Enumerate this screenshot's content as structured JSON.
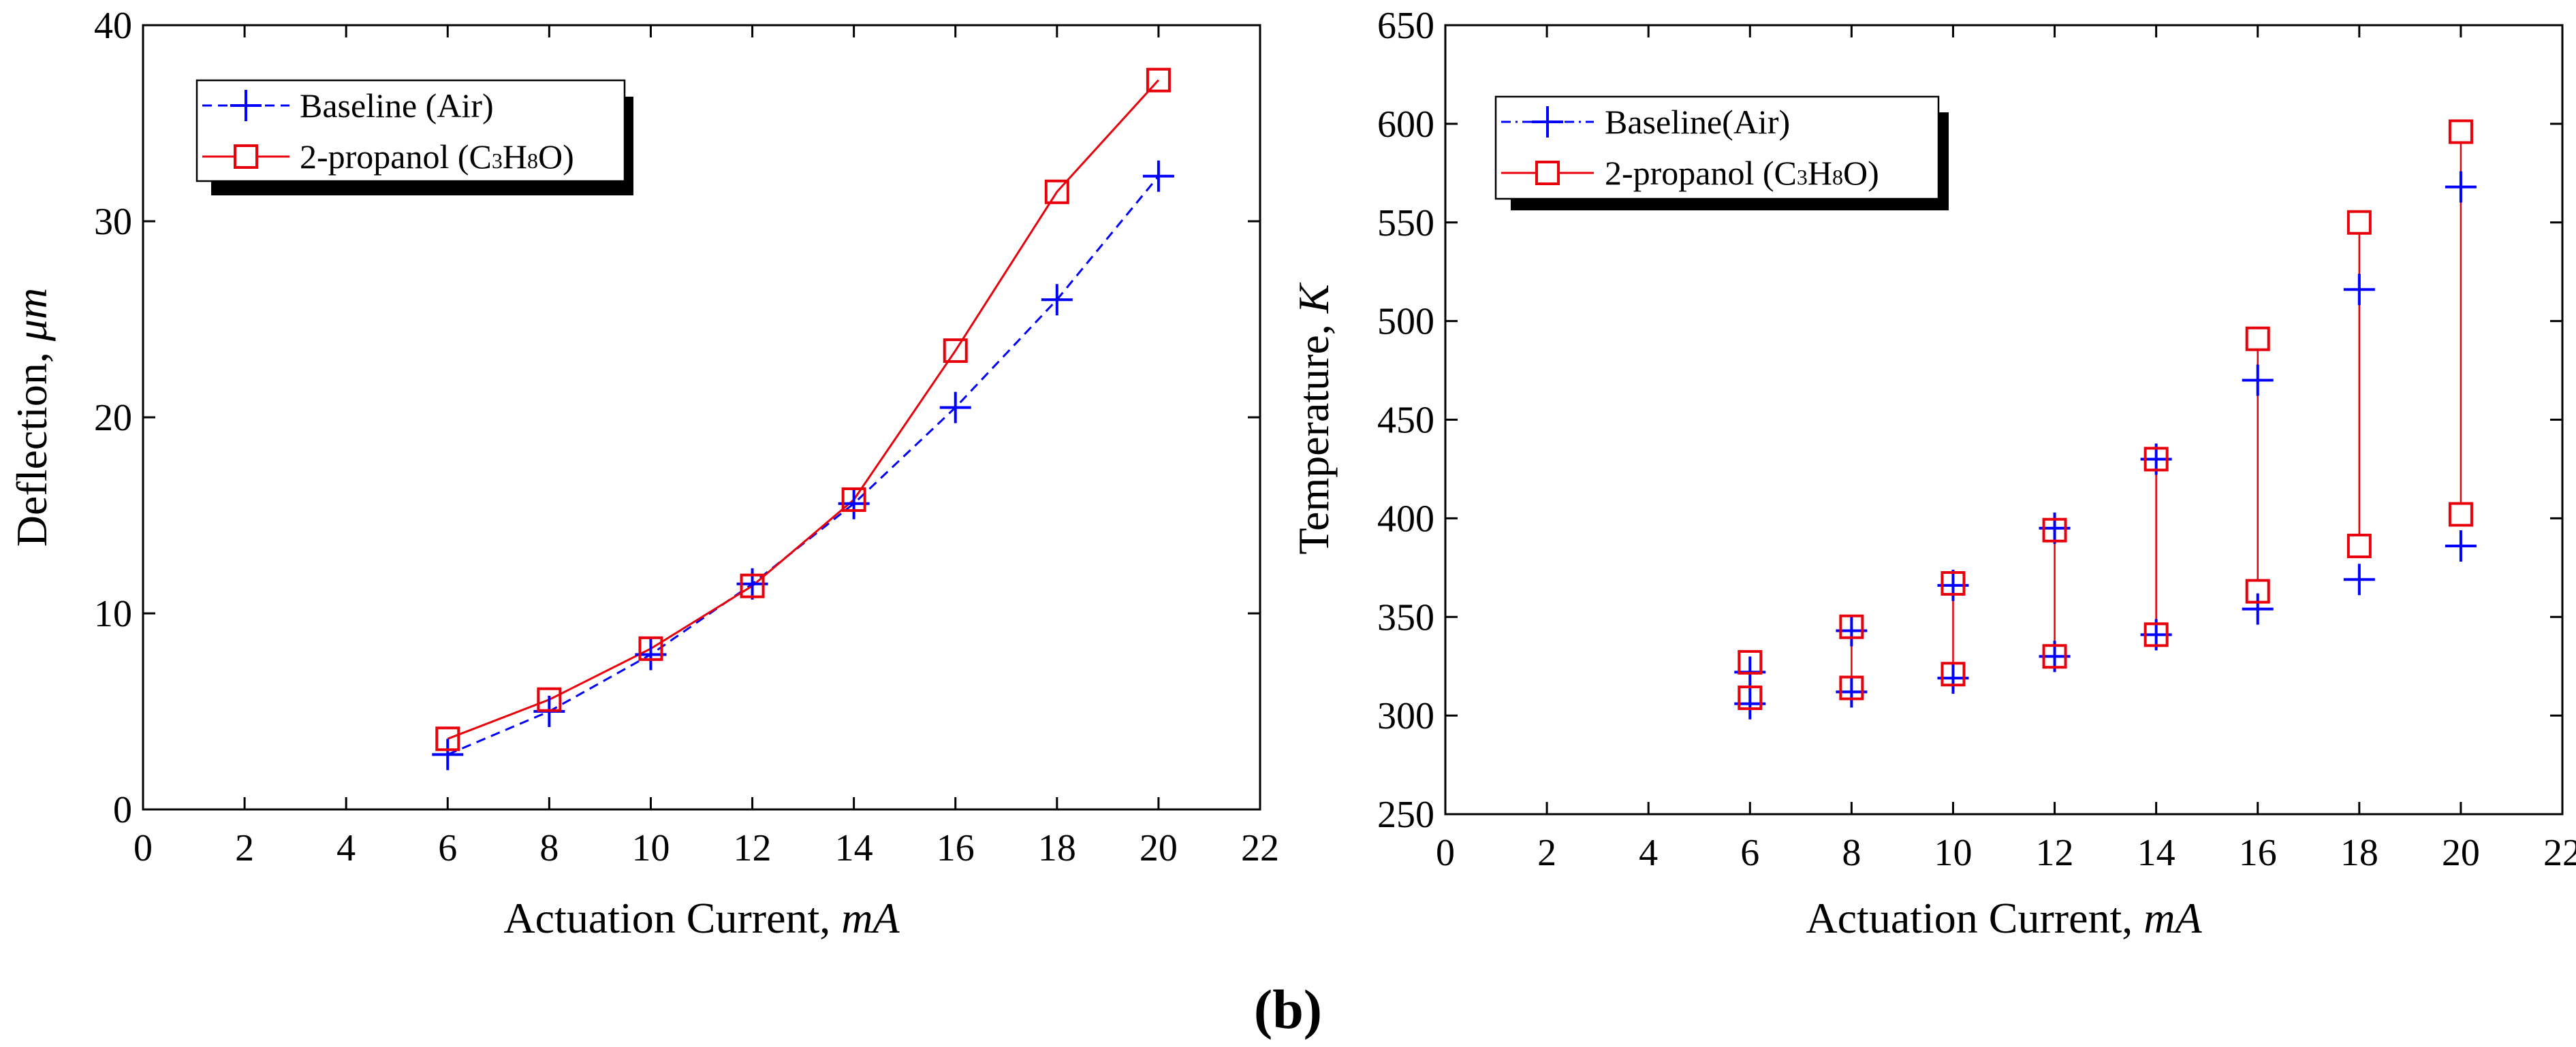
{
  "figure": {
    "panel_label": "b"
  },
  "chart_data": [
    {
      "type": "line",
      "title": "",
      "xlabel": "Actuation Current,",
      "xlabel_unit": "mA",
      "ylabel": "Deflection,",
      "ylabel_unit": "μm",
      "xlim": [
        0,
        22
      ],
      "ylim": [
        0,
        40
      ],
      "xticks": [
        0,
        2,
        4,
        6,
        8,
        10,
        12,
        14,
        16,
        18,
        20,
        22
      ],
      "yticks": [
        0,
        10,
        20,
        30,
        40
      ],
      "legend_position": "top-left",
      "series": [
        {
          "name": "Baseline (Air)",
          "color": "#0000ff",
          "marker": "plus",
          "line": "dashed",
          "x": [
            6,
            8,
            10,
            12,
            14,
            16,
            18,
            20
          ],
          "y": [
            2.8,
            5.0,
            7.9,
            11.5,
            15.6,
            20.5,
            26.0,
            32.3
          ]
        },
        {
          "name": "2-propanol (C3H8O)",
          "color": "#e8000b",
          "marker": "square",
          "line": "solid",
          "x": [
            6,
            8,
            10,
            12,
            14,
            16,
            18,
            20
          ],
          "y": [
            3.6,
            5.6,
            8.2,
            11.4,
            15.8,
            23.4,
            31.5,
            37.2
          ]
        }
      ]
    },
    {
      "type": "scatter",
      "title": "",
      "xlabel": "Actuation Current,",
      "xlabel_unit": "mA",
      "ylabel": "Temperature,",
      "ylabel_unit": "K",
      "xlim": [
        0,
        22
      ],
      "ylim": [
        250,
        650
      ],
      "xticks": [
        0,
        2,
        4,
        6,
        8,
        10,
        12,
        14,
        16,
        18,
        20,
        22
      ],
      "yticks": [
        250,
        300,
        350,
        400,
        450,
        500,
        550,
        600,
        650
      ],
      "legend_position": "top-left",
      "series": [
        {
          "name": "Baseline(Air)",
          "color": "#0000ff",
          "marker": "plus",
          "line": "dashdot",
          "x": [
            6,
            8,
            10,
            12,
            14,
            16,
            18,
            20
          ],
          "y_low": [
            306,
            312,
            319,
            330,
            341,
            354,
            369,
            386
          ],
          "y_high": [
            322,
            343,
            366,
            395,
            430,
            470,
            516,
            568
          ]
        },
        {
          "name": "2-propanol (C3H8O)",
          "color": "#e8000b",
          "marker": "square",
          "line": "solid",
          "x": [
            6,
            8,
            10,
            12,
            14,
            16,
            18,
            20
          ],
          "y_low": [
            309,
            314,
            321,
            330,
            341,
            363,
            386,
            402
          ],
          "y_high": [
            327,
            345,
            367,
            394,
            430,
            491,
            550,
            596
          ]
        }
      ]
    }
  ]
}
